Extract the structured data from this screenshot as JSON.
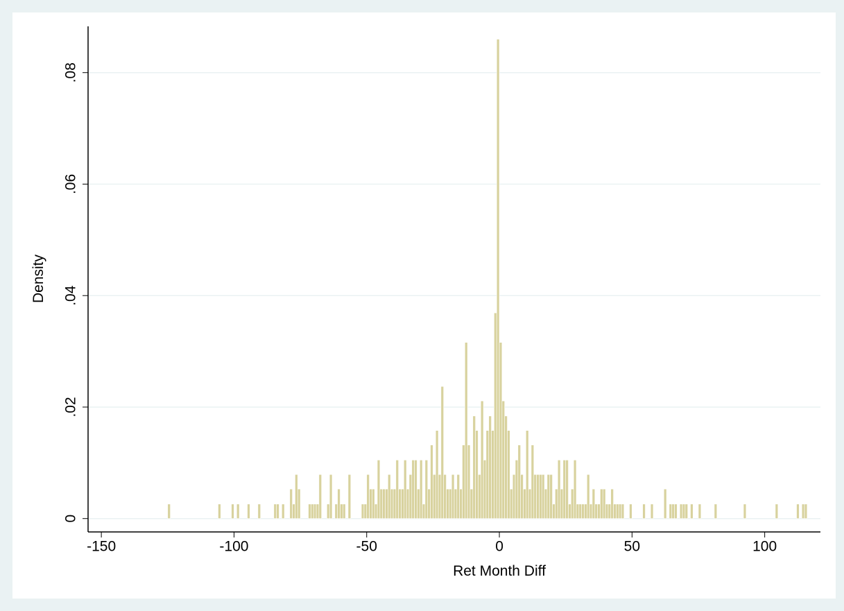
{
  "chart_data": {
    "type": "histogram",
    "x_label": "Ret Month Diff",
    "y_label": "Density",
    "color": "#d8d29e",
    "xlim": [
      -155,
      121
    ],
    "ylim": [
      -0.0024,
      0.0883
    ],
    "xticks": [
      -150,
      -100,
      -50,
      0,
      50,
      100
    ],
    "yticks": [
      0,
      {
        "value": 0.02,
        "label": ".02"
      },
      {
        "value": 0.04,
        "label": ".04"
      },
      {
        "value": 0.06,
        "label": ".06"
      },
      {
        "value": 0.08,
        "label": ".08"
      }
    ],
    "grid": true,
    "bins": [
      -126,
      -125,
      -124,
      -123,
      -122,
      -121,
      -120,
      -119,
      -118,
      -117,
      -116,
      -115,
      -114,
      -113,
      -112,
      -111,
      -110,
      -109,
      -108,
      -107,
      -106,
      -105,
      -104,
      -103,
      -102,
      -101,
      -100,
      -99,
      -98,
      -97,
      -96,
      -95,
      -94,
      -93,
      -92,
      -91,
      -90,
      -89,
      -88,
      -87,
      -86,
      -85,
      -84,
      -83,
      -82,
      -81,
      -80,
      -79,
      -78,
      -77,
      -76,
      -75,
      -74,
      -73,
      -72,
      -71,
      -70,
      -69,
      -68,
      -67,
      -66,
      -65,
      -64,
      -63,
      -62,
      -61,
      -60,
      -59,
      -58,
      -57,
      -56,
      -55,
      -54,
      -53,
      -52,
      -51,
      -50,
      -49,
      -48,
      -47,
      -46,
      -45,
      -44,
      -43,
      -42,
      -41,
      -40,
      -39,
      -38,
      -37,
      -36,
      -35,
      -34,
      -33,
      -32,
      -31,
      -30,
      -29,
      -28,
      -27,
      -26,
      -25,
      -24,
      -23,
      -22,
      -21,
      -20,
      -19,
      -18,
      -17,
      -16,
      -15,
      -14,
      -13,
      -12,
      -11,
      -10,
      -9,
      -8,
      -7,
      -6,
      -5,
      -4,
      -3,
      -2,
      -1,
      0,
      1,
      2,
      3,
      4,
      5,
      6,
      7,
      8,
      9,
      10,
      11,
      12,
      13,
      14,
      15,
      16,
      17,
      18,
      19,
      20,
      21,
      22,
      23,
      24,
      25,
      26,
      27,
      28,
      29,
      30,
      31,
      32,
      33,
      34,
      35,
      36,
      37,
      38,
      39,
      40,
      41,
      42,
      43,
      44,
      45,
      46,
      47,
      48,
      49,
      50,
      51,
      52,
      53,
      54,
      55,
      56,
      57,
      58,
      59,
      60,
      61,
      62,
      63,
      64,
      65,
      66,
      67,
      68,
      69,
      70,
      71,
      72,
      73,
      74,
      75,
      76,
      77,
      78,
      79,
      80,
      81,
      82,
      83,
      84,
      85,
      86,
      87,
      88,
      89,
      90,
      91,
      92,
      93,
      94,
      95,
      96,
      97,
      98,
      99,
      100,
      101,
      102,
      103,
      104,
      105,
      106,
      107,
      108,
      109,
      110,
      111,
      112,
      113,
      114,
      115,
      116
    ],
    "values": [
      0,
      0.0026,
      0,
      0,
      0,
      0,
      0,
      0,
      0,
      0,
      0,
      0,
      0,
      0,
      0,
      0,
      0,
      0,
      0,
      0,
      0.0026,
      0,
      0,
      0,
      0,
      0.0026,
      0,
      0.0026,
      0,
      0,
      0,
      0.0026,
      0,
      0,
      0,
      0.0026,
      0,
      0,
      0,
      0,
      0,
      0.0026,
      0.0026,
      0,
      0.0026,
      0,
      0,
      0.0053,
      0.0026,
      0.0079,
      0.0053,
      0,
      0,
      0,
      0.0026,
      0.0026,
      0.0026,
      0.0026,
      0.0079,
      0,
      0,
      0.0026,
      0.0079,
      0,
      0.0026,
      0.0053,
      0.0026,
      0.0026,
      0,
      0.0079,
      0,
      0,
      0,
      0,
      0.0026,
      0.0026,
      0.0079,
      0.0053,
      0.0053,
      0.0026,
      0.0105,
      0.0053,
      0.0053,
      0.0053,
      0.0079,
      0.0053,
      0.0053,
      0.0105,
      0.0053,
      0.0053,
      0.0105,
      0.0053,
      0.0079,
      0.0105,
      0.0105,
      0.0053,
      0.0105,
      0.0026,
      0.0105,
      0.0053,
      0.0132,
      0.0079,
      0.0158,
      0.0079,
      0.0237,
      0.0079,
      0.0053,
      0.0053,
      0.0079,
      0.0053,
      0.0079,
      0.0053,
      0.0132,
      0.0316,
      0.0132,
      0.0053,
      0.0184,
      0.0158,
      0.0079,
      0.0211,
      0.0105,
      0.0158,
      0.0184,
      0.0158,
      0.0369,
      0.086,
      0.0316,
      0.0211,
      0.0184,
      0.0158,
      0.0053,
      0.0079,
      0.0105,
      0.0132,
      0.0079,
      0.0053,
      0.0158,
      0.0053,
      0.0132,
      0.0079,
      0.0079,
      0.0079,
      0.0079,
      0.0053,
      0.0079,
      0.0079,
      0.0026,
      0.0053,
      0.0105,
      0.0053,
      0.0105,
      0.0105,
      0.0026,
      0.0053,
      0.0105,
      0.0026,
      0.0026,
      0.0026,
      0.0026,
      0.0079,
      0.0026,
      0.0053,
      0.0026,
      0.0026,
      0.0053,
      0.0053,
      0.0026,
      0.0026,
      0.0053,
      0.0026,
      0.0026,
      0.0026,
      0.0026,
      0,
      0,
      0.0026,
      0,
      0,
      0,
      0,
      0.0026,
      0,
      0,
      0.0026,
      0,
      0,
      0,
      0,
      0.0053,
      0,
      0.0026,
      0.0026,
      0.0026,
      0,
      0.0026,
      0.0026,
      0.0026,
      0,
      0.0026,
      0,
      0,
      0.0026,
      0,
      0,
      0,
      0,
      0,
      0.0026,
      0,
      0,
      0,
      0,
      0,
      0,
      0,
      0,
      0,
      0,
      0.0026,
      0,
      0,
      0,
      0,
      0,
      0,
      0,
      0,
      0,
      0,
      0,
      0.0026,
      0,
      0,
      0,
      0,
      0,
      0,
      0,
      0.0026,
      0,
      0.0026,
      0.0026
    ]
  }
}
